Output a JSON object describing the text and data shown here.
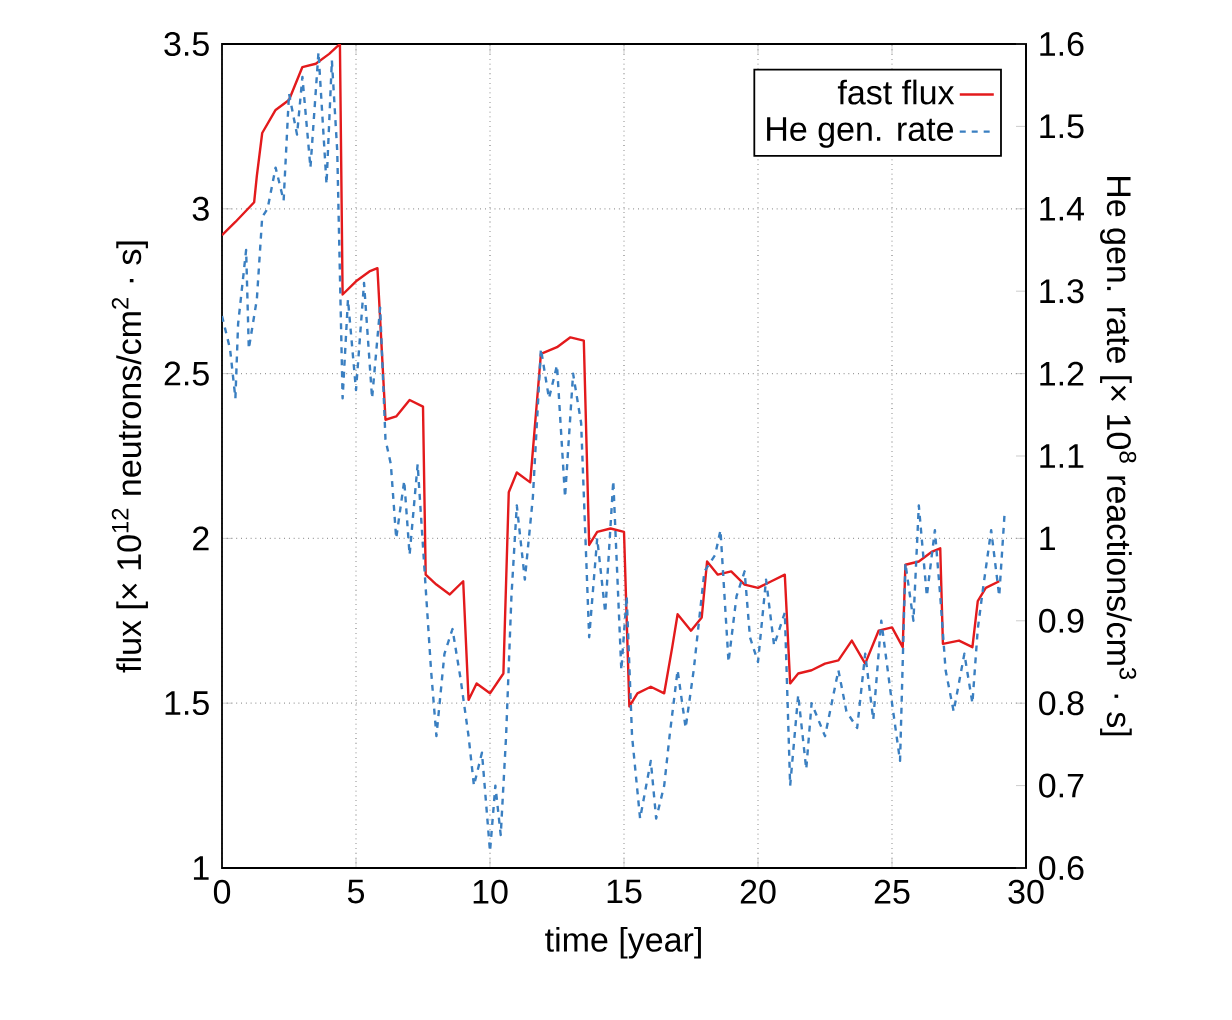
{
  "chart_data": {
    "type": "line",
    "xlabel": "time [year]",
    "ylabel": "flux [× 10$^{12}$ neutrons/cm$^{2}$ · s]",
    "y2label": "He gen. rate [× 10$^{8}$ reactions/cm$^{3}$ · s]",
    "xlim": [
      0,
      30
    ],
    "xticks": [
      0,
      5,
      10,
      15,
      20,
      25,
      30
    ],
    "ylim": [
      1,
      3.5
    ],
    "yticks": [
      1,
      1.5,
      2,
      2.5,
      3,
      3.5
    ],
    "y2lim": [
      0.6,
      1.6
    ],
    "y2ticks": [
      0.6,
      0.7,
      0.8,
      0.9,
      1,
      1.1,
      1.2,
      1.3,
      1.4,
      1.5,
      1.6
    ],
    "grid": true,
    "legend": "top right",
    "series": [
      {
        "name": "fast flux",
        "color": "#e31a1c",
        "line_style": "solid",
        "x": [
          0,
          0.5,
          1.2,
          1.3,
          1.5,
          2,
          2.5,
          3,
          3.5,
          4,
          4.4,
          4.5,
          5,
          5.5,
          5.8,
          6.1,
          6.5,
          7,
          7.5,
          7.6,
          8,
          8.5,
          9,
          9.2,
          9.5,
          10,
          10.5,
          10.7,
          11,
          11.5,
          11.9,
          12.5,
          13,
          13.5,
          13.7,
          14,
          14.5,
          15,
          15.2,
          15.5,
          16,
          16.5,
          16.8,
          17,
          17.5,
          17.9,
          18.1,
          18.5,
          19,
          19.5,
          20,
          20.5,
          21,
          21.2,
          21.5,
          22,
          22.5,
          23,
          23.5,
          24,
          24.5,
          25,
          25.4,
          25.5,
          26,
          26.5,
          26.8,
          26.9,
          27.5,
          28,
          28.2,
          28.5,
          29
        ],
        "values": [
          2.92,
          2.96,
          3.02,
          3.1,
          3.23,
          3.3,
          3.33,
          3.43,
          3.44,
          3.47,
          3.5,
          2.74,
          2.78,
          2.81,
          2.82,
          2.36,
          2.37,
          2.42,
          2.4,
          1.89,
          1.86,
          1.83,
          1.87,
          1.51,
          1.56,
          1.53,
          1.59,
          2.14,
          2.2,
          2.17,
          2.56,
          2.58,
          2.61,
          2.6,
          1.98,
          2.02,
          2.03,
          2.02,
          1.49,
          1.53,
          1.55,
          1.53,
          1.67,
          1.77,
          1.72,
          1.76,
          1.93,
          1.89,
          1.9,
          1.86,
          1.85,
          1.87,
          1.89,
          1.56,
          1.59,
          1.6,
          1.62,
          1.63,
          1.69,
          1.62,
          1.72,
          1.73,
          1.67,
          1.92,
          1.93,
          1.96,
          1.97,
          1.68,
          1.69,
          1.67,
          1.81,
          1.85,
          1.87
        ]
      },
      {
        "name": "He gen. rate",
        "color": "#3a7fc1",
        "line_style": "dashed",
        "axis": "y2",
        "x": [
          0,
          0.3,
          0.5,
          0.6,
          0.9,
          1,
          1.3,
          1.5,
          1.7,
          2,
          2.3,
          2.5,
          2.8,
          3,
          3.3,
          3.6,
          3.9,
          4.1,
          4.3,
          4.5,
          4.7,
          5,
          5.3,
          5.6,
          5.9,
          6.1,
          6.3,
          6.5,
          6.8,
          7,
          7.3,
          7.6,
          7.8,
          8,
          8.3,
          8.6,
          8.9,
          9.2,
          9.4,
          9.7,
          10,
          10.2,
          10.4,
          10.6,
          10.8,
          11,
          11.3,
          11.6,
          11.9,
          12.2,
          12.5,
          12.8,
          13.1,
          13.4,
          13.7,
          14,
          14.3,
          14.6,
          14.9,
          15.1,
          15.3,
          15.6,
          16,
          16.2,
          16.5,
          16.7,
          17,
          17.3,
          17.6,
          18,
          18.4,
          18.6,
          18.9,
          19.2,
          19.5,
          19.7,
          20,
          20.3,
          20.6,
          21,
          21.2,
          21.5,
          21.8,
          22,
          22.5,
          23,
          23.3,
          23.7,
          24,
          24.3,
          24.6,
          25,
          25.3,
          25.5,
          25.8,
          26,
          26.3,
          26.6,
          26.8,
          27,
          27.3,
          27.7,
          28,
          28.2,
          28.4,
          28.7,
          29,
          29.2
        ],
        "values": [
          1.27,
          1.23,
          1.17,
          1.26,
          1.35,
          1.23,
          1.29,
          1.39,
          1.4,
          1.45,
          1.41,
          1.54,
          1.49,
          1.56,
          1.45,
          1.59,
          1.43,
          1.58,
          1.47,
          1.17,
          1.29,
          1.18,
          1.31,
          1.17,
          1.28,
          1.12,
          1.09,
          1.0,
          1.07,
          0.98,
          1.09,
          0.94,
          0.84,
          0.76,
          0.86,
          0.89,
          0.83,
          0.76,
          0.7,
          0.74,
          0.62,
          0.7,
          0.64,
          0.76,
          0.93,
          1.04,
          0.95,
          1.05,
          1.23,
          1.17,
          1.21,
          1.05,
          1.2,
          1.14,
          0.88,
          1.0,
          0.91,
          1.07,
          0.84,
          0.93,
          0.76,
          0.66,
          0.73,
          0.66,
          0.7,
          0.76,
          0.84,
          0.77,
          0.84,
          0.96,
          0.98,
          1.01,
          0.85,
          0.93,
          0.96,
          0.88,
          0.85,
          0.95,
          0.87,
          0.91,
          0.7,
          0.81,
          0.72,
          0.8,
          0.76,
          0.84,
          0.79,
          0.77,
          0.86,
          0.78,
          0.9,
          0.8,
          0.73,
          0.97,
          0.9,
          1.04,
          0.93,
          1.01,
          0.93,
          0.84,
          0.79,
          0.86,
          0.8,
          0.89,
          0.94,
          1.01,
          0.93,
          1.03
        ]
      }
    ]
  }
}
